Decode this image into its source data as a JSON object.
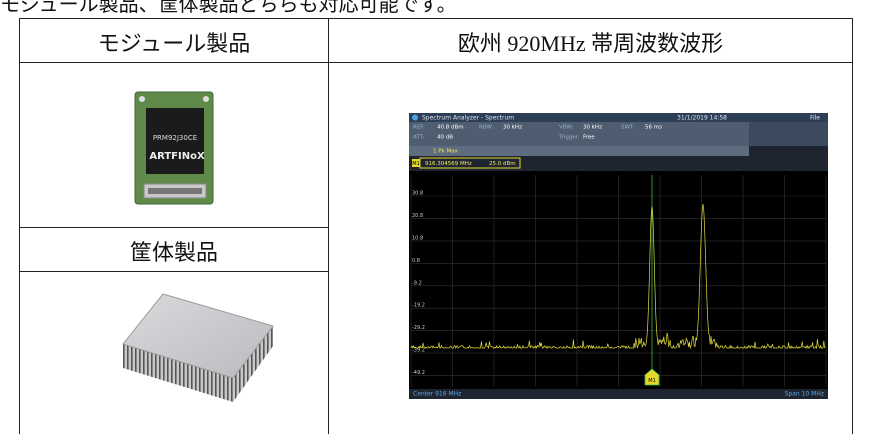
{
  "intro": "モジュール製品、筐体製品どちらも対応可能です。",
  "table": {
    "headers": [
      "モジュール製品",
      "欧州 920MHz 帯周波数波形"
    ],
    "rows": [
      [
        "筐体製品"
      ]
    ]
  },
  "module_label": {
    "model": "PRM92J30CE",
    "brand": "ARTFINoX"
  },
  "spectrum": {
    "title": "Spectrum Analyzer - Spectrum",
    "datetime": "31/1/2019  14:58",
    "menu": "File",
    "settings": [
      [
        "REF:",
        "40.8 dBm"
      ],
      [
        "RBW:",
        "30 kHz"
      ],
      [
        "VBW:",
        "30 kHz"
      ],
      [
        "SWT:",
        "56 ms"
      ],
      [
        "ATT:",
        "40 dB"
      ],
      [
        "Trigger:",
        "Free"
      ]
    ],
    "trace": "1 Pk  Max",
    "marker": {
      "name": "M1",
      "freq": "916.304569 MHz",
      "level": "25.0 dBm"
    },
    "y_labels": [
      "30.8",
      "20.8",
      "10.8",
      "0.8",
      "-9.2",
      "-19.2",
      "-29.2",
      "-39.2",
      "-49.2"
    ],
    "center": "Center 916 MHz",
    "span": "Span 10 MHz",
    "marker_flag": "M1"
  }
}
